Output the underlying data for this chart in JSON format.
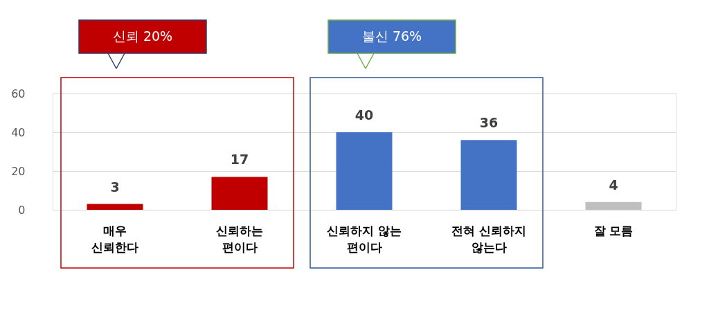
{
  "chart_data": {
    "type": "bar",
    "categories": [
      "매우\n신뢰한다",
      "신뢰하는\n편이다",
      "신뢰하지 않는\n편이다",
      "전혀 신뢰하지\n않는다",
      "잘 모름"
    ],
    "values": [
      3,
      17,
      40,
      36,
      4
    ],
    "colors": [
      "#c00000",
      "#c00000",
      "#4472c4",
      "#4472c4",
      "#bfbfbf"
    ],
    "ylim": [
      0,
      60
    ],
    "yticks": [
      0,
      20,
      40,
      60
    ],
    "grid": "y",
    "data_labels": true,
    "annotations": [
      "신뢰 20%",
      "불신 76%"
    ]
  }
}
